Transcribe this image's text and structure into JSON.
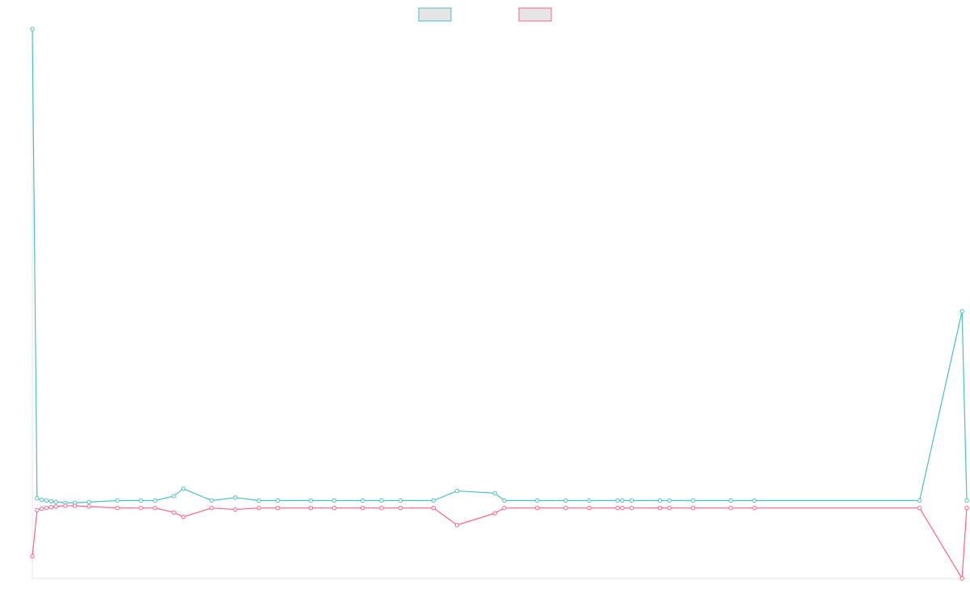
{
  "chart_data": {
    "type": "line",
    "title": "",
    "xlabel": "",
    "ylabel": "",
    "grid": false,
    "legend_position": "top-center",
    "ylim": [
      -100,
      640
    ],
    "x": [
      0,
      1,
      2,
      3,
      4,
      5,
      7,
      9,
      12,
      18,
      23,
      26,
      30,
      32,
      38,
      43,
      48,
      52,
      59,
      64,
      70,
      74,
      78,
      85,
      90,
      98,
      100,
      107,
      113,
      118,
      124,
      125,
      127,
      133,
      135,
      140,
      148,
      153,
      188,
      197,
      198
    ],
    "series": [
      {
        "name": "",
        "color": "#4bc0c0",
        "fill": "#e5e5e5",
        "values": [
          640,
          8,
          6,
          5,
          4,
          3,
          2,
          2,
          3,
          5,
          5,
          5,
          11,
          21,
          5,
          9,
          5,
          5,
          5,
          5,
          5,
          5,
          5,
          5,
          18,
          15,
          5,
          5,
          5,
          5,
          5,
          5,
          5,
          5,
          5,
          5,
          5,
          5,
          5,
          260,
          5
        ]
      },
      {
        "name": "",
        "color": "#ff6384",
        "fill": "#e5e5e5",
        "values": [
          -70,
          -8,
          -6,
          -5,
          -4,
          -3,
          -2,
          -2,
          -3,
          -5,
          -5,
          -5,
          -11,
          -17,
          -5,
          -7,
          -5,
          -5,
          -5,
          -5,
          -5,
          -5,
          -5,
          -5,
          -28,
          -12,
          -5,
          -5,
          -5,
          -5,
          -5,
          -5,
          -5,
          -5,
          -5,
          -5,
          -5,
          -5,
          -5,
          -100,
          -5
        ]
      }
    ]
  }
}
